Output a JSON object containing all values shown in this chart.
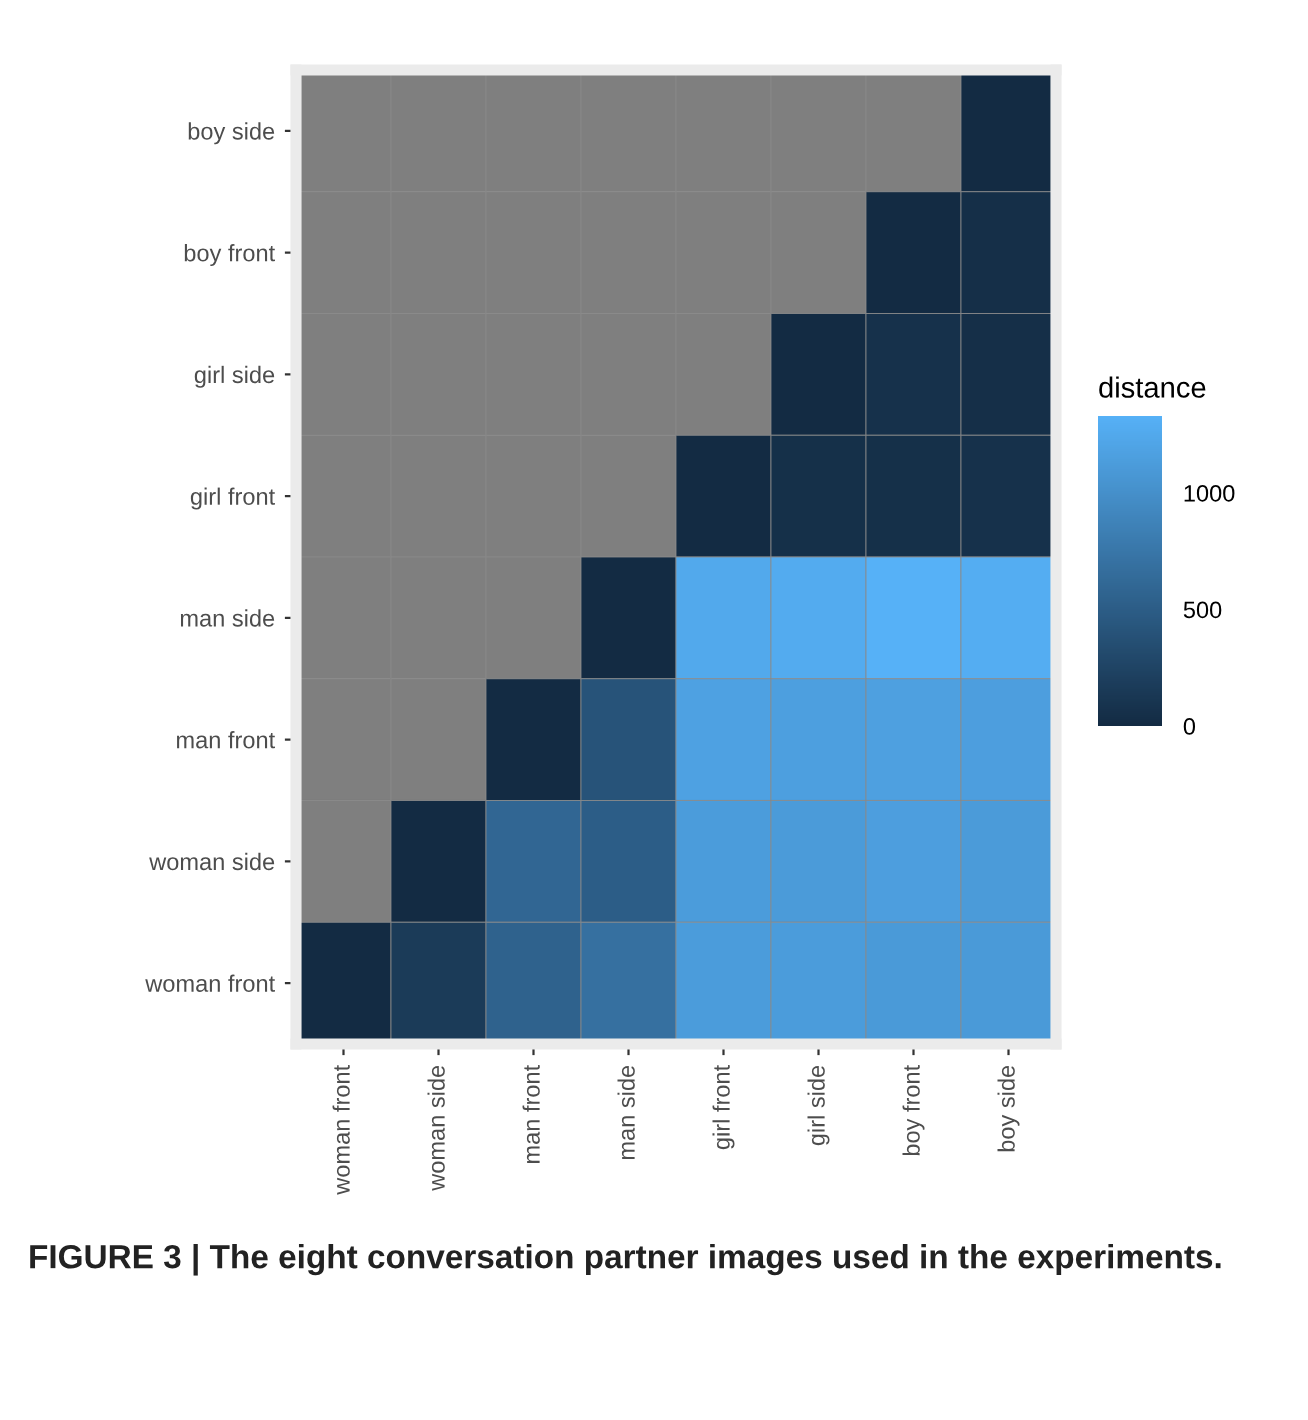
{
  "chart_data": {
    "type": "heatmap",
    "categories": [
      "woman front",
      "woman side",
      "man front",
      "man side",
      "girl front",
      "girl side",
      "boy front",
      "boy side"
    ],
    "y_categories": [
      "boy side",
      "boy front",
      "girl side",
      "girl front",
      "man side",
      "man front",
      "woman side",
      "woman front"
    ],
    "cells": [
      [
        null,
        null,
        null,
        null,
        null,
        null,
        null,
        0
      ],
      [
        null,
        null,
        null,
        null,
        null,
        null,
        0,
        40
      ],
      [
        null,
        null,
        null,
        null,
        null,
        0,
        60,
        40
      ],
      [
        null,
        null,
        null,
        null,
        0,
        50,
        50,
        60
      ],
      [
        null,
        null,
        null,
        0,
        1250,
        1270,
        1330,
        1290
      ],
      [
        null,
        null,
        0,
        400,
        1170,
        1150,
        1160,
        1140
      ],
      [
        null,
        0,
        590,
        500,
        1120,
        1110,
        1140,
        1110
      ],
      [
        0,
        160,
        550,
        690,
        1120,
        1120,
        1100,
        1100
      ]
    ],
    "clim": [
      0,
      1330
    ],
    "cticks": [
      0,
      500,
      1000
    ],
    "clabel": "distance",
    "colors": [
      "#132b43",
      "#56b1f7"
    ],
    "annotations": [
      "FIGURE 3 | The eight conversation partner images used in the experiments."
    ]
  }
}
